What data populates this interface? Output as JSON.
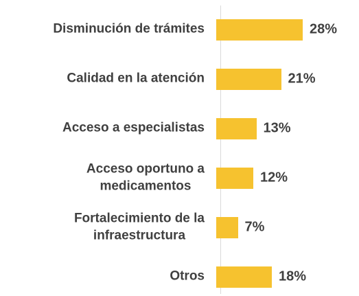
{
  "chart_data": {
    "type": "bar",
    "orientation": "horizontal",
    "categories": [
      "Disminución de trámites",
      "Calidad en la atención",
      "Acceso a especialistas",
      "Acceso oportuno a\nmedicamentos",
      "Fortalecimiento de la\ninfraestructura",
      "Otros"
    ],
    "values": [
      28,
      21,
      13,
      12,
      7,
      18
    ],
    "value_labels": [
      "28%",
      "21%",
      "13%",
      "12%",
      "7%",
      "18%"
    ],
    "color": "#f6c22f"
  }
}
